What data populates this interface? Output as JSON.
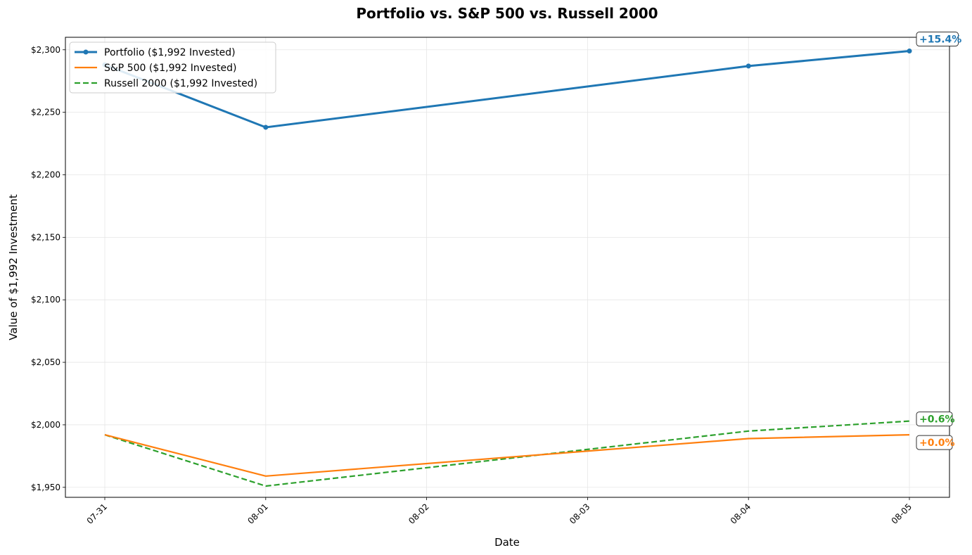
{
  "chart_data": {
    "type": "line",
    "title": "Portfolio vs. S&P 500 vs. Russell 2000",
    "xlabel": "Date",
    "ylabel": "Value of $1,992 Investment",
    "x": [
      "07-31",
      "08-01",
      "08-04",
      "08-05"
    ],
    "x_ticks": [
      "07-31",
      "08-01",
      "08-02",
      "08-03",
      "08-04",
      "08-05"
    ],
    "x_tick_dates": [
      "2025-07-31",
      "2025-08-01",
      "2025-08-02",
      "2025-08-03",
      "2025-08-04",
      "2025-08-05"
    ],
    "x_dates": [
      "2025-07-31",
      "2025-08-01",
      "2025-08-04",
      "2025-08-05"
    ],
    "ylim": [
      1942,
      2310
    ],
    "y_ticks": [
      1950,
      2000,
      2050,
      2100,
      2150,
      2200,
      2250,
      2300
    ],
    "y_tick_labels": [
      "$1,950",
      "$2,000",
      "$2,050",
      "$2,100",
      "$2,150",
      "$2,200",
      "$2,250",
      "$2,300"
    ],
    "grid": true,
    "legend_position": "top-left",
    "series": [
      {
        "name": "Portfolio ($1,992 Invested)",
        "values": [
          2288,
          2238,
          2287,
          2299
        ],
        "color": "#1f77b4",
        "style": "solid-markers",
        "end_label": "+15.4%"
      },
      {
        "name": "S&P 500 ($1,992 Invested)",
        "values": [
          1992,
          1959,
          1989,
          1992
        ],
        "color": "#ff7f0e",
        "style": "solid",
        "end_label": "+0.0%"
      },
      {
        "name": "Russell 2000 ($1,992 Invested)",
        "values": [
          1992,
          1951,
          1995,
          2003
        ],
        "color": "#2ca02c",
        "style": "dashed",
        "end_label": "+0.6%"
      }
    ]
  }
}
